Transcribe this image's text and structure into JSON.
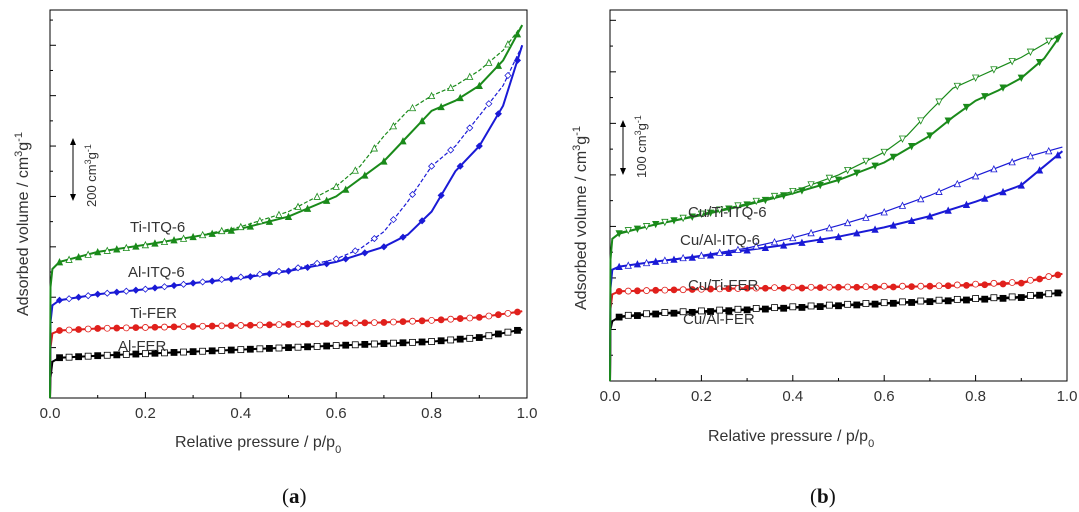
{
  "chart_data": [
    {
      "type": "line",
      "panel_label": "a",
      "xlabel_main": "Relative pressure / p/p",
      "xlabel_sub": "0",
      "ylabel_main": "Adsorbed volume / cm",
      "ylabel_sup1": "3",
      "ylabel_mid": "g",
      "ylabel_sup2": "-1",
      "xlim": [
        0,
        1.0
      ],
      "x_ticks": [
        "0.0",
        "0.2",
        "0.4",
        "0.6",
        "0.8",
        "1.0"
      ],
      "scale_bar": {
        "value": "200 cm",
        "sup1": "3",
        "mid": "g",
        "sup2": "-1"
      },
      "series": [
        {
          "name": "Al-FER",
          "color": "#000000",
          "adsorption": [
            [
              0,
              0
            ],
            [
              0.001,
              20
            ],
            [
              0.005,
              36
            ],
            [
              0.02,
              40
            ],
            [
              0.1,
              42
            ],
            [
              0.2,
              44
            ],
            [
              0.3,
              46
            ],
            [
              0.4,
              48
            ],
            [
              0.5,
              50
            ],
            [
              0.6,
              52
            ],
            [
              0.7,
              54
            ],
            [
              0.8,
              56
            ],
            [
              0.9,
              60
            ],
            [
              0.99,
              68
            ]
          ],
          "desorption": [
            [
              0.99,
              68
            ],
            [
              0.9,
              60
            ],
            [
              0.8,
              56
            ],
            [
              0.7,
              54
            ],
            [
              0.6,
              52
            ],
            [
              0.5,
              50
            ],
            [
              0.4,
              48
            ],
            [
              0.3,
              46
            ],
            [
              0.2,
              44
            ],
            [
              0.1,
              42
            ],
            [
              0.02,
              40
            ]
          ]
        },
        {
          "name": "Ti-FER",
          "color": "#e0201c",
          "adsorption": [
            [
              0,
              0
            ],
            [
              0.001,
              50
            ],
            [
              0.005,
              64
            ],
            [
              0.02,
              67
            ],
            [
              0.1,
              69
            ],
            [
              0.2,
              70
            ],
            [
              0.3,
              71
            ],
            [
              0.4,
              72
            ],
            [
              0.5,
              73
            ],
            [
              0.6,
              74
            ],
            [
              0.7,
              75
            ],
            [
              0.8,
              77
            ],
            [
              0.9,
              80
            ],
            [
              0.99,
              86
            ]
          ],
          "desorption": [
            [
              0.99,
              86
            ],
            [
              0.9,
              80
            ],
            [
              0.8,
              77
            ],
            [
              0.7,
              75
            ],
            [
              0.6,
              74
            ],
            [
              0.5,
              73
            ],
            [
              0.4,
              72
            ],
            [
              0.3,
              71
            ],
            [
              0.2,
              70
            ],
            [
              0.1,
              69
            ],
            [
              0.02,
              67
            ]
          ]
        },
        {
          "name": "Al-ITQ-6",
          "color": "#1a1ad6",
          "adsorption": [
            [
              0,
              0
            ],
            [
              0.001,
              75
            ],
            [
              0.005,
              92
            ],
            [
              0.02,
              97
            ],
            [
              0.1,
              103
            ],
            [
              0.2,
              108
            ],
            [
              0.3,
              114
            ],
            [
              0.4,
              119
            ],
            [
              0.5,
              126
            ],
            [
              0.6,
              135
            ],
            [
              0.7,
              150
            ],
            [
              0.75,
              162
            ],
            [
              0.8,
              185
            ],
            [
              0.85,
              225
            ],
            [
              0.9,
              250
            ],
            [
              0.95,
              290
            ],
            [
              0.99,
              350
            ]
          ],
          "desorption": [
            [
              0.99,
              350
            ],
            [
              0.95,
              310
            ],
            [
              0.9,
              280
            ],
            [
              0.85,
              250
            ],
            [
              0.8,
              230
            ],
            [
              0.75,
              195
            ],
            [
              0.7,
              165
            ],
            [
              0.65,
              148
            ],
            [
              0.6,
              138
            ],
            [
              0.5,
              127
            ],
            [
              0.4,
              120
            ],
            [
              0.3,
              114
            ],
            [
              0.2,
              108
            ],
            [
              0.1,
              103
            ],
            [
              0.02,
              97
            ]
          ]
        },
        {
          "name": "Ti-ITQ-6",
          "color": "#1a8a1a",
          "adsorption": [
            [
              0,
              0
            ],
            [
              0.001,
              110
            ],
            [
              0.005,
              128
            ],
            [
              0.02,
              135
            ],
            [
              0.1,
              145
            ],
            [
              0.2,
              152
            ],
            [
              0.3,
              160
            ],
            [
              0.4,
              168
            ],
            [
              0.5,
              180
            ],
            [
              0.6,
              200
            ],
            [
              0.7,
              235
            ],
            [
              0.75,
              260
            ],
            [
              0.8,
              285
            ],
            [
              0.85,
              295
            ],
            [
              0.9,
              310
            ],
            [
              0.95,
              335
            ],
            [
              0.99,
              370
            ]
          ],
          "desorption": [
            [
              0.99,
              370
            ],
            [
              0.95,
              345
            ],
            [
              0.9,
              325
            ],
            [
              0.85,
              310
            ],
            [
              0.8,
              300
            ],
            [
              0.75,
              285
            ],
            [
              0.7,
              260
            ],
            [
              0.65,
              230
            ],
            [
              0.6,
              210
            ],
            [
              0.5,
              185
            ],
            [
              0.4,
              170
            ],
            [
              0.3,
              160
            ],
            [
              0.2,
              152
            ],
            [
              0.1,
              145
            ],
            [
              0.02,
              135
            ]
          ]
        }
      ]
    },
    {
      "type": "line",
      "panel_label": "b",
      "xlabel_main": "Relative pressure / p/p",
      "xlabel_sub": "0",
      "ylabel_main": "Adsorbed volume / cm",
      "ylabel_sup1": "3",
      "ylabel_mid": "g",
      "ylabel_sup2": "-1",
      "xlim": [
        0,
        1.0
      ],
      "x_ticks": [
        "0.0",
        "0.2",
        "0.4",
        "0.6",
        "0.8",
        "1.0"
      ],
      "scale_bar": {
        "value": "100 cm",
        "sup1": "3",
        "mid": "g",
        "sup2": "-1"
      },
      "series": [
        {
          "name": "Cu/Al-FER",
          "color": "#000000",
          "adsorption": [
            [
              0,
              0
            ],
            [
              0.001,
              50
            ],
            [
              0.005,
              58
            ],
            [
              0.02,
              62
            ],
            [
              0.1,
              65
            ],
            [
              0.2,
              67
            ],
            [
              0.3,
              69
            ],
            [
              0.4,
              71
            ],
            [
              0.5,
              73
            ],
            [
              0.6,
              75
            ],
            [
              0.7,
              77
            ],
            [
              0.8,
              79
            ],
            [
              0.9,
              81
            ],
            [
              0.99,
              86
            ]
          ],
          "desorption": [
            [
              0.99,
              86
            ],
            [
              0.9,
              82
            ],
            [
              0.8,
              80
            ],
            [
              0.7,
              78
            ],
            [
              0.6,
              76
            ],
            [
              0.5,
              74
            ],
            [
              0.4,
              72
            ],
            [
              0.3,
              70
            ],
            [
              0.2,
              68
            ],
            [
              0.1,
              66
            ],
            [
              0.02,
              63
            ]
          ]
        },
        {
          "name": "Cu/Ti-FER",
          "color": "#e0201c",
          "adsorption": [
            [
              0,
              0
            ],
            [
              0.001,
              70
            ],
            [
              0.005,
              84
            ],
            [
              0.02,
              87
            ],
            [
              0.1,
              88
            ],
            [
              0.2,
              89
            ],
            [
              0.3,
              90
            ],
            [
              0.4,
              90
            ],
            [
              0.5,
              91
            ],
            [
              0.6,
              91
            ],
            [
              0.7,
              92
            ],
            [
              0.8,
              93
            ],
            [
              0.9,
              95
            ],
            [
              0.99,
              104
            ]
          ],
          "desorption": [
            [
              0.99,
              104
            ],
            [
              0.9,
              96
            ],
            [
              0.8,
              94
            ],
            [
              0.7,
              92
            ],
            [
              0.6,
              92
            ],
            [
              0.5,
              91
            ],
            [
              0.4,
              91
            ],
            [
              0.3,
              90
            ],
            [
              0.2,
              89
            ],
            [
              0.1,
              88
            ],
            [
              0.02,
              87
            ]
          ]
        },
        {
          "name": "Cu/Al-ITQ-6",
          "color": "#1a1ad6",
          "adsorption": [
            [
              0,
              0
            ],
            [
              0.001,
              90
            ],
            [
              0.005,
              108
            ],
            [
              0.02,
              111
            ],
            [
              0.1,
              116
            ],
            [
              0.2,
              121
            ],
            [
              0.3,
              127
            ],
            [
              0.4,
              133
            ],
            [
              0.5,
              140
            ],
            [
              0.6,
              149
            ],
            [
              0.7,
              160
            ],
            [
              0.8,
              174
            ],
            [
              0.9,
              190
            ],
            [
              0.99,
              223
            ]
          ],
          "desorption": [
            [
              0.99,
              227
            ],
            [
              0.9,
              216
            ],
            [
              0.8,
              199
            ],
            [
              0.7,
              180
            ],
            [
              0.6,
              164
            ],
            [
              0.5,
              151
            ],
            [
              0.4,
              139
            ],
            [
              0.3,
              129
            ],
            [
              0.2,
              122
            ],
            [
              0.1,
              116
            ],
            [
              0.02,
              111
            ]
          ]
        },
        {
          "name": "Cu/Ti-ITQ-6",
          "color": "#1a8a1a",
          "adsorption": [
            [
              0,
              0
            ],
            [
              0.001,
              118
            ],
            [
              0.005,
              138
            ],
            [
              0.02,
              143
            ],
            [
              0.1,
              152
            ],
            [
              0.2,
              161
            ],
            [
              0.3,
              171
            ],
            [
              0.4,
              182
            ],
            [
              0.5,
              195
            ],
            [
              0.6,
              212
            ],
            [
              0.7,
              238
            ],
            [
              0.75,
              256
            ],
            [
              0.8,
              272
            ],
            [
              0.85,
              282
            ],
            [
              0.9,
              294
            ],
            [
              0.95,
              313
            ],
            [
              0.99,
              338
            ]
          ],
          "desorption": [
            [
              0.99,
              338
            ],
            [
              0.95,
              327
            ],
            [
              0.9,
              314
            ],
            [
              0.85,
              304
            ],
            [
              0.8,
              294
            ],
            [
              0.75,
              284
            ],
            [
              0.7,
              262
            ],
            [
              0.65,
              238
            ],
            [
              0.6,
              222
            ],
            [
              0.5,
              200
            ],
            [
              0.4,
              184
            ],
            [
              0.3,
              172
            ],
            [
              0.2,
              162
            ],
            [
              0.1,
              152
            ],
            [
              0.02,
              144
            ]
          ]
        }
      ]
    }
  ]
}
